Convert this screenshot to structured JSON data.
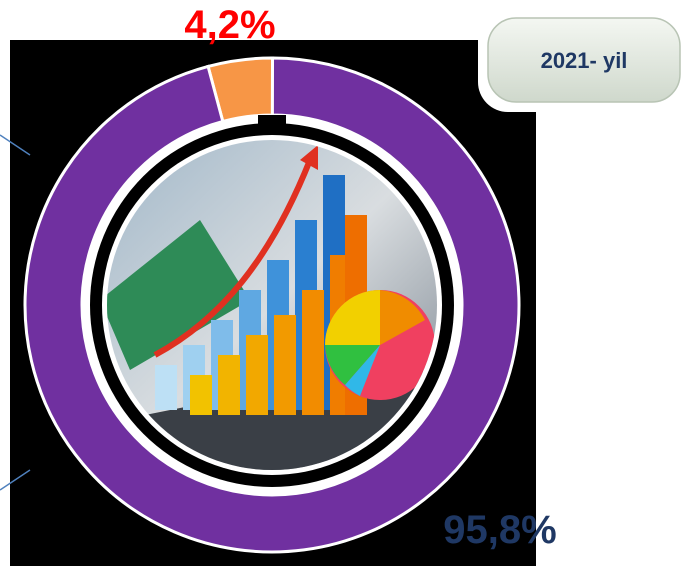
{
  "chart_data": {
    "type": "donut",
    "values": [
      4.2,
      95.8
    ],
    "value_labels": [
      "4,2%",
      "95,8%"
    ],
    "colors": [
      "#f79646",
      "#7030a0"
    ]
  },
  "button": {
    "label": "2021- yil"
  }
}
